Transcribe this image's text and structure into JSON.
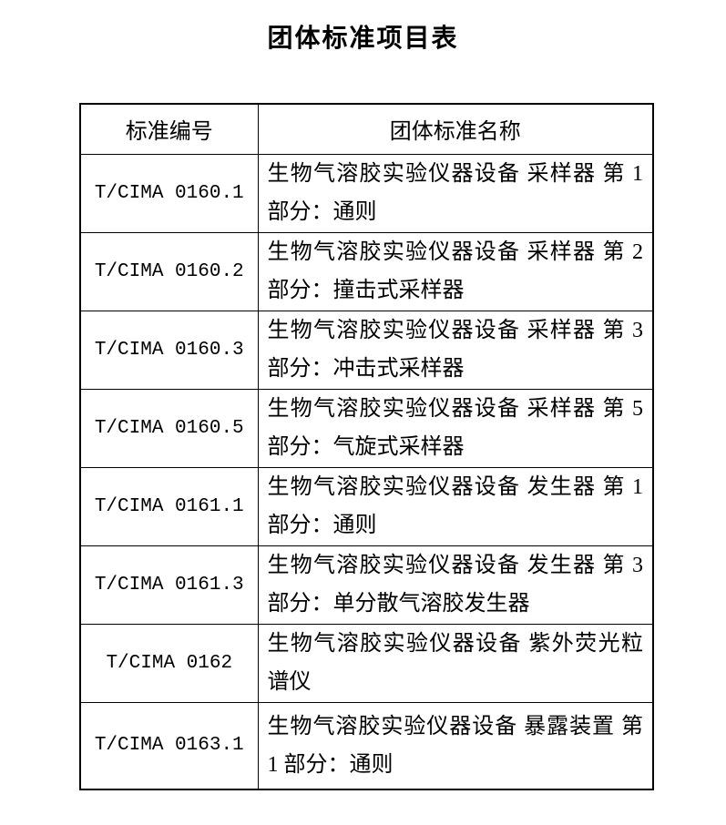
{
  "document": {
    "title": "团体标准项目表"
  },
  "table": {
    "headers": {
      "code": "标准编号",
      "name": "团体标准名称"
    },
    "rows": [
      {
        "code": "T/CIMA 0160.1",
        "name": "生物气溶胶实验仪器设备 采样器 第 1 部分：通则"
      },
      {
        "code": "T/CIMA 0160.2",
        "name": "生物气溶胶实验仪器设备 采样器 第 2 部分：撞击式采样器"
      },
      {
        "code": "T/CIMA 0160.3",
        "name": "生物气溶胶实验仪器设备 采样器 第 3 部分：冲击式采样器"
      },
      {
        "code": "T/CIMA 0160.5",
        "name": "生物气溶胶实验仪器设备 采样器 第 5 部分：气旋式采样器"
      },
      {
        "code": "T/CIMA 0161.1",
        "name": "生物气溶胶实验仪器设备 发生器 第 1 部分：通则"
      },
      {
        "code": "T/CIMA 0161.3",
        "name": "生物气溶胶实验仪器设备 发生器 第 3 部分：单分散气溶胶发生器"
      },
      {
        "code": "T/CIMA 0162",
        "name": "生物气溶胶实验仪器设备 紫外荧光粒谱仪"
      },
      {
        "code": "T/CIMA 0163.1",
        "name": "生物气溶胶实验仪器设备 暴露装置 第 1 部分：通则"
      }
    ]
  }
}
